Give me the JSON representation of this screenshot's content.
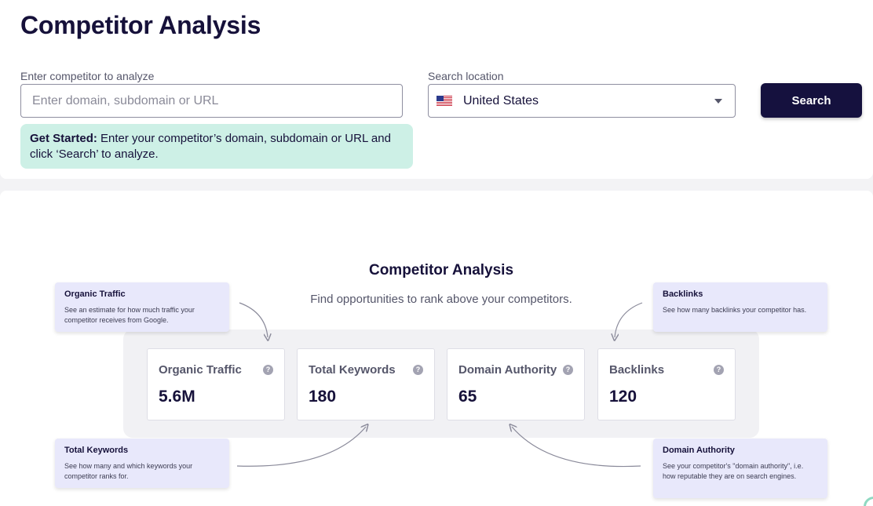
{
  "page_title": "Competitor Analysis",
  "form": {
    "competitor_label": "Enter competitor to analyze",
    "competitor_placeholder": "Enter domain, subdomain or URL",
    "competitor_value": "",
    "location_label": "Search location",
    "location_value": "United States",
    "location_flag": "us-flag-icon",
    "search_button": "Search"
  },
  "tip": {
    "bold": "Get Started:",
    "text": " Enter your competitor’s domain, subdomain or URL and click ‘Search’ to analyze."
  },
  "intro": {
    "title": "Competitor Analysis",
    "subtitle": "Find opportunities to rank above your competitors."
  },
  "metrics": [
    {
      "label": "Organic Traffic",
      "value": "5.6M"
    },
    {
      "label": "Total Keywords",
      "value": "180"
    },
    {
      "label": "Domain Authority",
      "value": "65"
    },
    {
      "label": "Backlinks",
      "value": "120"
    }
  ],
  "help_icon": "?",
  "callouts": {
    "organic_traffic": {
      "title": "Organic Traffic",
      "desc": "See an estimate for how much traffic your competitor receives from Google."
    },
    "backlinks": {
      "title": "Backlinks",
      "desc": "See how many backlinks your competitor has."
    },
    "total_keywords": {
      "title": "Total Keywords",
      "desc": "See how many and which keywords your competitor ranks for."
    },
    "domain_authority": {
      "title": "Domain Authority",
      "desc": "See your competitor's \"domain authority\", i.e. how reputable they are on search engines."
    }
  },
  "colors": {
    "brand_dark": "#15113e",
    "tip_bg": "#cdf0e6",
    "callout_bg": "#e8e8fb"
  }
}
